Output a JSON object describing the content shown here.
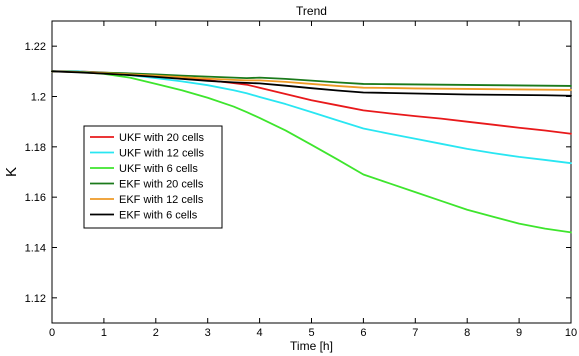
{
  "chart_data": {
    "type": "line",
    "title": "Trend",
    "xlabel": "Time [h]",
    "ylabel": "K",
    "xlim": [
      0,
      10
    ],
    "ylim": [
      1.11,
      1.23
    ],
    "xticks": [
      0,
      1,
      2,
      3,
      4,
      5,
      6,
      7,
      8,
      9,
      10
    ],
    "yticks": [
      1.12,
      1.14,
      1.16,
      1.18,
      1.2,
      1.22
    ],
    "ytick_labels": [
      "1.12",
      "1.14",
      "1.16",
      "1.18",
      "1.2",
      "1.22"
    ],
    "grid": false,
    "legend_position": "middle-left",
    "x": [
      0,
      0.5,
      1,
      1.5,
      2,
      2.5,
      3,
      3.5,
      3.75,
      4,
      4.5,
      5,
      5.5,
      6,
      6.5,
      7,
      7.5,
      8,
      8.5,
      9,
      9.5,
      10
    ],
    "series": [
      {
        "name": "UKF with 20 cells",
        "color": "#e8191b",
        "values": [
          1.21,
          1.21,
          1.2095,
          1.209,
          1.2083,
          1.2075,
          1.2065,
          1.2053,
          1.2047,
          1.2035,
          1.201,
          1.1985,
          1.1965,
          1.1945,
          1.1933,
          1.1922,
          1.1912,
          1.19,
          1.1888,
          1.1876,
          1.1865,
          1.1852
        ]
      },
      {
        "name": "UKF with 12 cells",
        "color": "#29e6f2",
        "values": [
          1.21,
          1.21,
          1.2093,
          1.2085,
          1.2073,
          1.206,
          1.2045,
          1.2025,
          1.2013,
          1.1998,
          1.197,
          1.1938,
          1.1905,
          1.1873,
          1.1852,
          1.1832,
          1.1812,
          1.1792,
          1.1775,
          1.176,
          1.1748,
          1.1735
        ]
      },
      {
        "name": "UKF with 6 cells",
        "color": "#3ee52d",
        "values": [
          1.21,
          1.2098,
          1.209,
          1.2075,
          1.205,
          1.2025,
          1.1995,
          1.196,
          1.1938,
          1.1915,
          1.1865,
          1.1808,
          1.175,
          1.169,
          1.1655,
          1.162,
          1.1585,
          1.155,
          1.1522,
          1.1495,
          1.1475,
          1.146
        ]
      },
      {
        "name": "EKF with 20 cells",
        "color": "#1b7a1b",
        "values": [
          1.21,
          1.2098,
          1.2095,
          1.2092,
          1.2088,
          1.2083,
          1.2079,
          1.2075,
          1.2073,
          1.2075,
          1.207,
          1.2063,
          1.2056,
          1.205,
          1.2049,
          1.2048,
          1.2047,
          1.2046,
          1.2045,
          1.2044,
          1.2043,
          1.2042
        ]
      },
      {
        "name": "EKF with 12 cells",
        "color": "#ee9a26",
        "values": [
          1.21,
          1.2097,
          1.2093,
          1.2088,
          1.2083,
          1.2077,
          1.2071,
          1.2066,
          1.2064,
          1.2064,
          1.2058,
          1.205,
          1.2042,
          1.2035,
          1.2034,
          1.2032,
          1.2031,
          1.203,
          1.2029,
          1.2028,
          1.2027,
          1.2026
        ]
      },
      {
        "name": "EKF with 6 cells",
        "color": "#000000",
        "values": [
          1.21,
          1.2096,
          1.2091,
          1.2085,
          1.2078,
          1.207,
          1.2062,
          1.2056,
          1.2054,
          1.2052,
          1.2043,
          1.2033,
          1.2024,
          1.2016,
          1.2014,
          1.2012,
          1.201,
          1.2008,
          1.2007,
          1.2006,
          1.2005,
          1.2003
        ]
      }
    ]
  }
}
